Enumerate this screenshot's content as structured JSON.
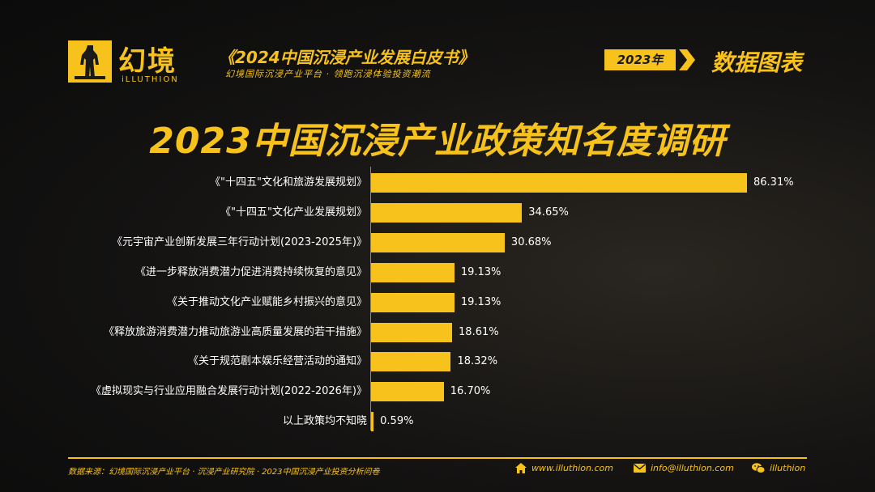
{
  "brand": {
    "name_cn": "幻境",
    "name_en": "iLLUTHION"
  },
  "header": {
    "publication_title": "《2024中国沉浸产业发展白皮书》",
    "publication_subtitle": "幻境国际沉浸产业平台 · 领跑沉浸体验投资潮流",
    "year_badge": "2023年",
    "section_label": "数据图表"
  },
  "chart_data": {
    "type": "bar",
    "orientation": "horizontal",
    "title": "2023中国沉浸产业政策知名度调研",
    "categories": [
      "《\"十四五\"文化和旅游发展规划》",
      "《\"十四五\"文化产业发展规划》",
      "《元宇宙产业创新发展三年行动计划(2023-2025年)》",
      "《进一步释放消费潜力促进消费持续恢复的意见》",
      "《关于推动文化产业赋能乡村振兴的意见》",
      "《释放旅游消费潜力推动旅游业高质量发展的若干措施》",
      "《关于规范剧本娱乐经营活动的通知》",
      "《虚拟现实与行业应用融合发展行动计划(2022-2026年)》",
      "以上政策均不知晓"
    ],
    "values": [
      86.31,
      34.65,
      30.68,
      19.13,
      19.13,
      18.61,
      18.32,
      16.7,
      0.59
    ],
    "value_labels": [
      "86.31%",
      "34.65%",
      "30.68%",
      "19.13%",
      "19.13%",
      "18.61%",
      "18.32%",
      "16.70%",
      "0.59%"
    ],
    "unit": "%",
    "color": "#f7c21b"
  },
  "footer": {
    "source": "数据来源：幻境国际沉浸产业平台 · 沉浸产业研究院 · 2023中国沉浸产业投资分析问卷",
    "website": "www.illuthion.com",
    "email": "info@illuthion.com",
    "wechat": "illuthion"
  },
  "colors": {
    "accent": "#f7c21b",
    "background": "#141312"
  }
}
